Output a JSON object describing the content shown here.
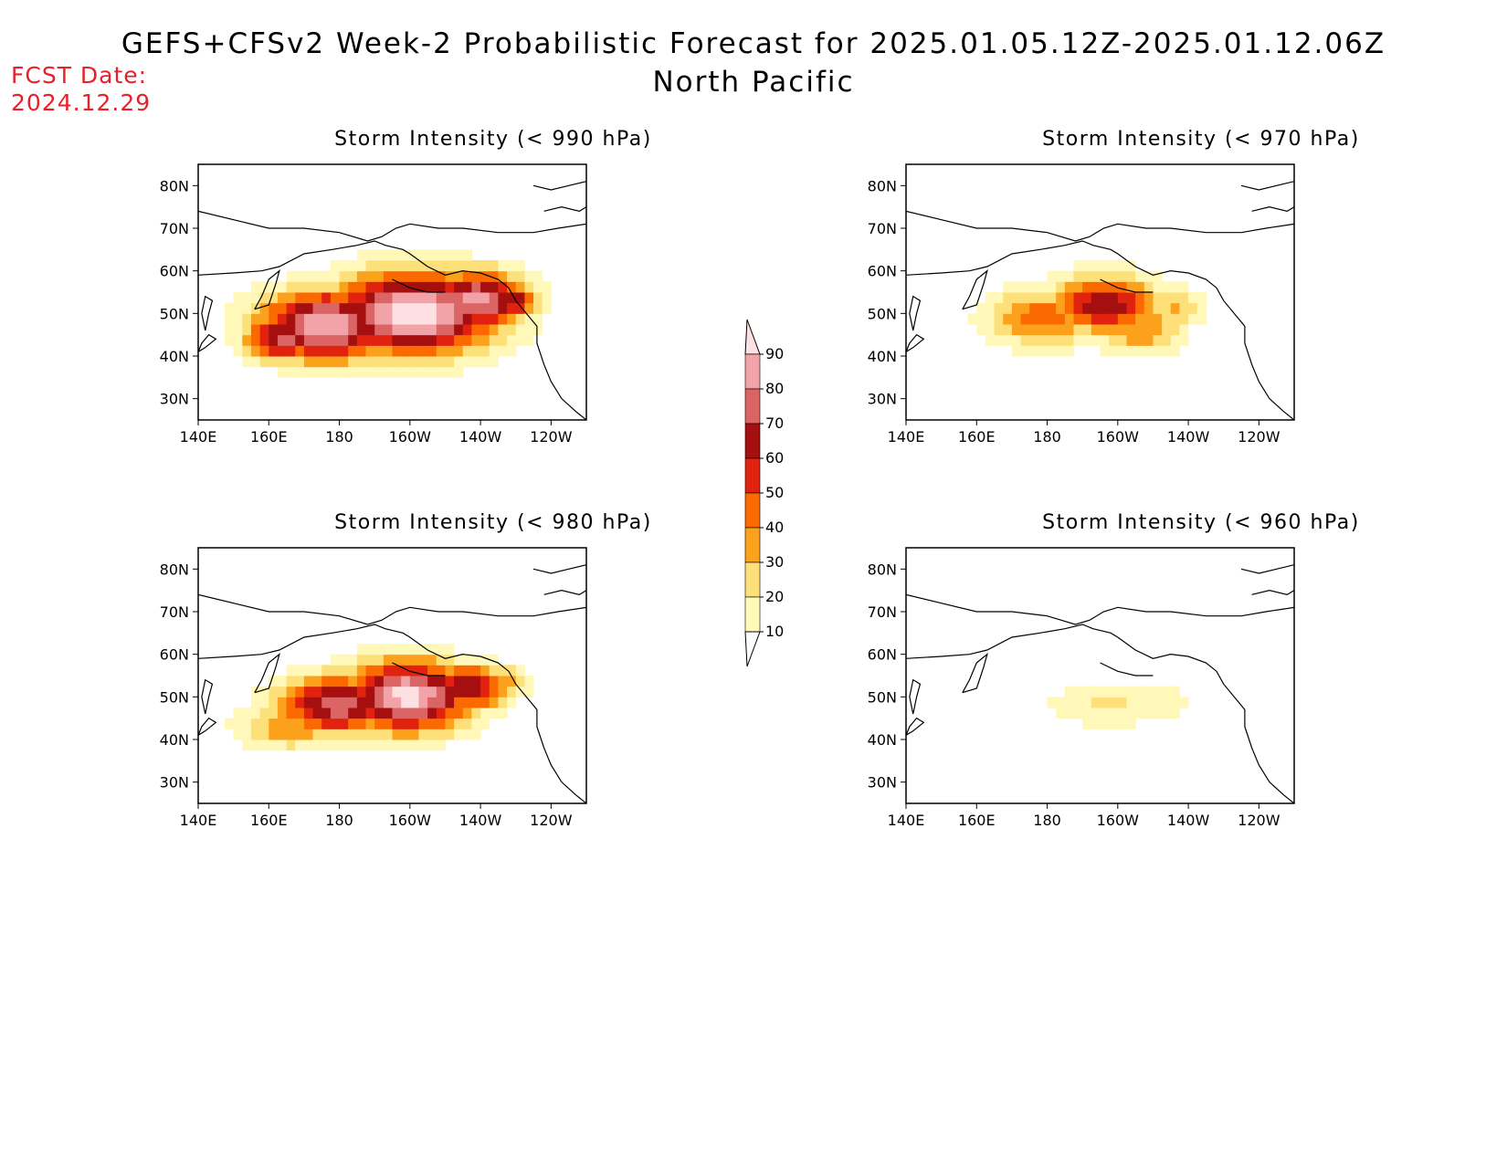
{
  "header": {
    "title": "GEFS+CFSv2 Week-2 Probabilistic Forecast for 2025.01.05.12Z-2025.01.12.06Z",
    "subtitle": "North Pacific",
    "fcst_label": "FCST Date:",
    "fcst_date": "2024.12.29"
  },
  "axes": {
    "lon_ticks": [
      "140E",
      "160E",
      "180",
      "160W",
      "140W",
      "120W"
    ],
    "lat_ticks": [
      "80N",
      "70N",
      "60N",
      "50N",
      "40N",
      "30N"
    ]
  },
  "panels": [
    {
      "title": "Storm Intensity (< 990 hPa)",
      "peak_probability": 90,
      "coverage": "broad"
    },
    {
      "title": "Storm Intensity (< 970 hPa)",
      "peak_probability": 70,
      "coverage": "moderate"
    },
    {
      "title": "Storm Intensity (< 980 hPa)",
      "peak_probability": 90,
      "coverage": "broad"
    },
    {
      "title": "Storm Intensity (< 960 hPa)",
      "peak_probability": 20,
      "coverage": "small"
    }
  ],
  "colorbar": {
    "levels": [
      "90",
      "80",
      "70",
      "60",
      "50",
      "40",
      "30",
      "20",
      "10"
    ],
    "colors": [
      "#fde0e2",
      "#f2a3a8",
      "#db6464",
      "#a50f0f",
      "#e0220e",
      "#fb6a00",
      "#fca11c",
      "#fde07a",
      "#fff8b8"
    ]
  }
}
